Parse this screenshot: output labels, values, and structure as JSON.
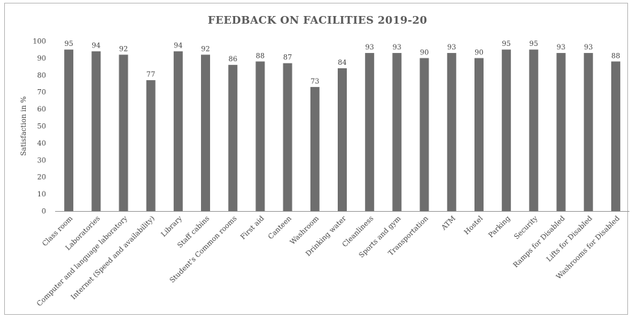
{
  "chart_data": {
    "type": "bar",
    "title": "FEEDBACK ON FACILITIES 2019-20",
    "xlabel": "",
    "ylabel": "Satisfaction in %",
    "ylim": [
      0,
      100
    ],
    "yticks": [
      0,
      10,
      20,
      30,
      40,
      50,
      60,
      70,
      80,
      90,
      100
    ],
    "grid": false,
    "legend": "none",
    "bar_color": "#6e6e6e",
    "categories": [
      "Class room",
      "Laboratories",
      "Computer and language laboratory",
      "Internet (Speed and availability)",
      "Library",
      "Staff cabins",
      "Student's Common rooms",
      "First aid",
      "Canteen",
      "Washroom",
      "Drinking water",
      "Cleanliness",
      "Sports and gym",
      "Transportation",
      "ATM",
      "Hostel",
      "Parking",
      "Security",
      "Ramps for Disabled",
      "Lifts for Disabled",
      "Washrooms for Disabled"
    ],
    "values": [
      95,
      94,
      92,
      77,
      94,
      92,
      86,
      88,
      87,
      73,
      84,
      93,
      93,
      90,
      93,
      90,
      95,
      95,
      93,
      93,
      88
    ],
    "data_labels": [
      "95",
      "94",
      "92",
      "77",
      "94",
      "92",
      "86",
      "88",
      "87",
      "73",
      "84",
      "93",
      "93",
      "90",
      "93",
      "90",
      "95",
      "95",
      "93",
      "93",
      "88"
    ]
  }
}
